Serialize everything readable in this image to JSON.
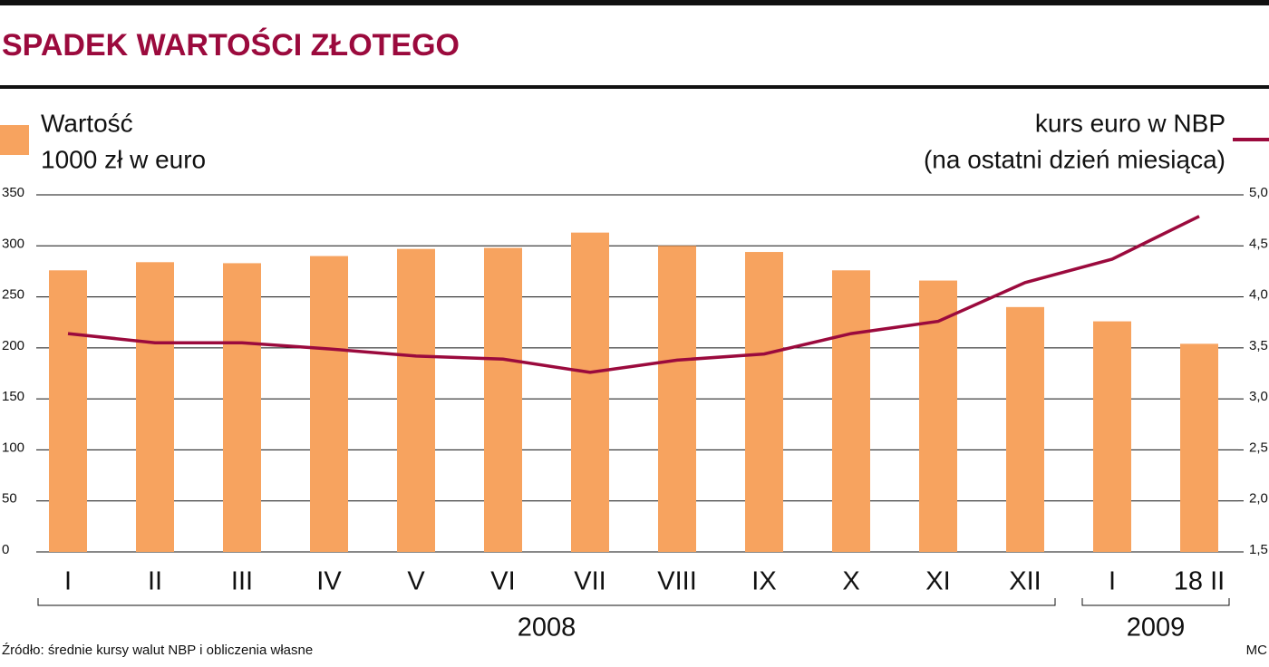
{
  "chart_data": {
    "type": "bar",
    "title": "SPADEK WARTOŚCI ZŁOTEGO",
    "categories": [
      "I",
      "II",
      "III",
      "IV",
      "V",
      "VI",
      "VII",
      "VIII",
      "IX",
      "X",
      "XI",
      "XII",
      "I",
      "18 II"
    ],
    "category_groups": [
      {
        "label": "2008",
        "count": 12
      },
      {
        "label": "2009",
        "count": 2
      }
    ],
    "series": [
      {
        "name": [
          "Wartość",
          "1000 zł w euro"
        ],
        "type": "bar",
        "color": "#f7a35f",
        "values": [
          276,
          284,
          283,
          290,
          297,
          298,
          313,
          300,
          294,
          276,
          266,
          240,
          226,
          204
        ]
      },
      {
        "name": [
          "kurs euro w NBP",
          "(na ostatni dzień miesiąca)"
        ],
        "type": "line",
        "axis": "y2",
        "color": "#9b0a3d",
        "values": [
          3.64,
          3.55,
          3.55,
          3.49,
          3.42,
          3.39,
          3.26,
          3.38,
          3.44,
          3.64,
          3.76,
          4.14,
          4.37,
          4.79
        ]
      }
    ],
    "ylim": [
      0,
      350
    ],
    "yticks": [
      0,
      50,
      100,
      150,
      200,
      250,
      300,
      350
    ],
    "y2lim": [
      1.5,
      5.0
    ],
    "y2ticks": [
      {
        "value": 1.5,
        "label": "1,5"
      },
      {
        "value": 2.0,
        "label": "2,0"
      },
      {
        "value": 2.5,
        "label": "2,5"
      },
      {
        "value": 3.0,
        "label": "3,0"
      },
      {
        "value": 3.5,
        "label": "3,5"
      },
      {
        "value": 4.0,
        "label": "4,0"
      },
      {
        "value": 4.5,
        "label": "4,5"
      },
      {
        "value": 5.0,
        "label": "5,0"
      }
    ],
    "grid": true,
    "source": "Źródło: średnie kursy walut NBP i obliczenia własne",
    "credit": "MC"
  }
}
